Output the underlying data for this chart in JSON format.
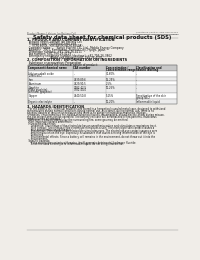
{
  "bg_color": "#f0ede8",
  "page_bg": "#f0ede8",
  "header_left": "Product Name: Lithium Ion Battery Cell",
  "header_right": "Substance Control: SDS-049-00016\nEstablishment / Revision: Dec.7.2016",
  "title": "Safety data sheet for chemical products (SDS)",
  "section1_title": "1. PRODUCT AND COMPANY IDENTIFICATION",
  "section1_lines": [
    "  Product name: Lithium Ion Battery Cell",
    "  Product code: Cylindrical-type cell",
    "      (ICR18650L, ICR18650G, ICR18650A)",
    "  Company name:      Sanyo Electric Co., Ltd., Mobile Energy Company",
    "  Address:   2001, Kamikanon, Sumoto-City, Hyogo, Japan",
    "  Telephone number:  +81-799-26-4111",
    "  Fax number: +81-799-26-4129",
    "  Emergency telephone number (daytime): +81-799-26-3862",
    "                          (Night and holiday): +81-799-26-4101"
  ],
  "section2_title": "2. COMPOSITION / INFORMATION ON INGREDIENTS",
  "section2_lines": [
    "  Substance or preparation: Preparation",
    "  Information about the chemical nature of product:"
  ],
  "table_header": [
    "Component/chemical name",
    "CAS number",
    "Concentration /\nConcentration range",
    "Classification and\nhazard labeling"
  ],
  "table_rows": [
    [
      "Lithium cobalt oxide\n(LiMnCoO₂)",
      "-",
      "30-60%",
      "-"
    ],
    [
      "Iron",
      "7439-89-6",
      "15-25%",
      "-"
    ],
    [
      "Aluminum",
      "7429-90-5",
      "2-5%",
      "-"
    ],
    [
      "Graphite\n(flake graphite)\n(artificial graphite)",
      "7782-42-5\n7782-44-0",
      "10-25%",
      "-"
    ],
    [
      "Copper",
      "7440-50-8",
      "5-15%",
      "Sensitization of the skin\ngroup No.2"
    ],
    [
      "Organic electrolyte",
      "-",
      "10-20%",
      "Inflammable liquid"
    ]
  ],
  "section3_title": "3. HAZARDS IDENTIFICATION",
  "section3_text": [
    "  For the battery cell, chemical materials are stored in a hermetically sealed metal case, designed to withstand",
    "temperatures during normal conditions during normal use. As a result, during normal use, there is no",
    "physical danger of ignition or explosion and there is no danger of hazardous materials leakage.",
    "  However, if subjected to a fire, added mechanical shocks, decomposed, or/and electric-shock during misuse,",
    "the gas release vent can be operated. The battery cell case will be breached of fire-patterns. Hazardous",
    "materials may be released.",
    "  Moreover, if heated strongly by the surrounding fire, some gas may be emitted.",
    "  Most important hazard and effects:",
    "  Human health effects:",
    "     Inhalation: The release of the electrolyte has an anesthesia action and stimulates a respiratory tract.",
    "     Skin contact: The release of the electrolyte stimulates a skin. The electrolyte skin contact causes a",
    "     sore and stimulation on the skin.",
    "     Eye contact: The release of the electrolyte stimulates eyes. The electrolyte eye contact causes a sore",
    "     and stimulation on the eye. Especially, a substance that causes a strong inflammation of the eye is",
    "     contained.",
    "     Environmental effects: Since a battery cell remains in the environment, do not throw out it into the",
    "     environment.",
    "  Specific hazards:",
    "     If the electrolyte contacts with water, it will generate detrimental hydrogen fluoride.",
    "     Since the used electrolyte is inflammable liquid, do not bring close to fire."
  ]
}
